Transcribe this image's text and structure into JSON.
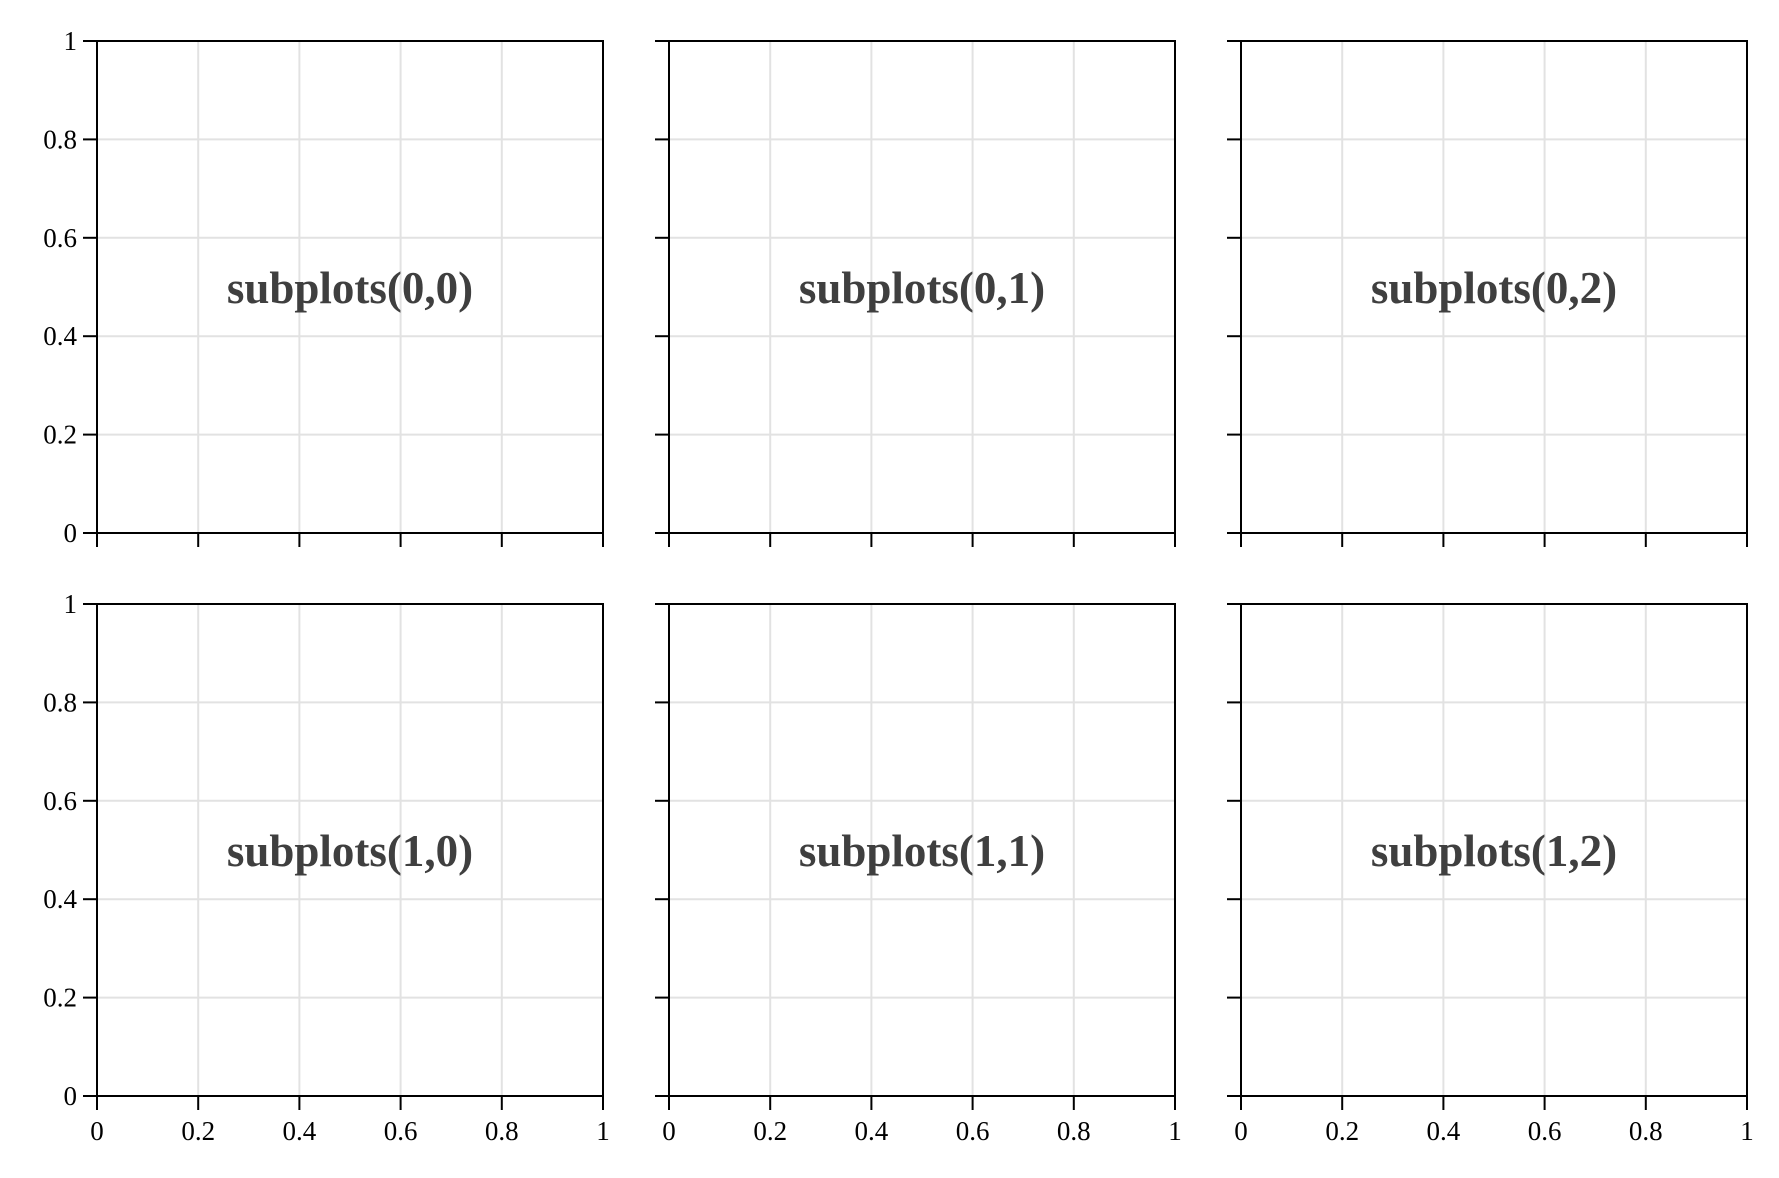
{
  "chart_data": {
    "type": "subplots-grid",
    "rows": 2,
    "cols": 3,
    "sharex": true,
    "sharey": true,
    "xlim": [
      0,
      1
    ],
    "ylim": [
      0,
      1
    ],
    "xticks": [
      "0",
      "0.2",
      "0.4",
      "0.6",
      "0.8",
      "1"
    ],
    "yticks": [
      "0",
      "0.2",
      "0.4",
      "0.6",
      "0.8",
      "1"
    ],
    "grid": true,
    "subplots": [
      {
        "row": 0,
        "col": 0,
        "annotation": "subplots(0,0)",
        "series": []
      },
      {
        "row": 0,
        "col": 1,
        "annotation": "subplots(0,1)",
        "series": []
      },
      {
        "row": 0,
        "col": 2,
        "annotation": "subplots(0,2)",
        "series": []
      },
      {
        "row": 1,
        "col": 0,
        "annotation": "subplots(1,0)",
        "series": []
      },
      {
        "row": 1,
        "col": 1,
        "annotation": "subplots(1,1)",
        "series": []
      },
      {
        "row": 1,
        "col": 2,
        "annotation": "subplots(1,2)",
        "series": []
      }
    ]
  },
  "colors": {
    "axes": "#000000",
    "grid": "#e2e2e2",
    "annotation": "#3f3f3f",
    "background": "#ffffff"
  }
}
